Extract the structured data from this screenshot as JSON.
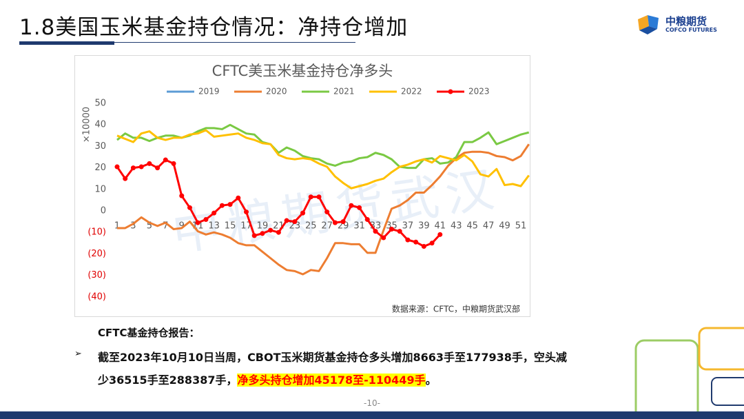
{
  "header": {
    "title": "1.8美国玉米基金持仓情况：净持仓增加"
  },
  "logo": {
    "name": "中粮期货",
    "subtitle": "COFCO FUTURES"
  },
  "watermark": "中粮期货武汉",
  "chart_data": {
    "type": "line",
    "title": "CFTC美玉米基金持仓净多头",
    "y_label": "×10000",
    "source": "数据来源：CFTC，中粮期货武汉部",
    "x": [
      1,
      2,
      3,
      4,
      5,
      6,
      7,
      8,
      9,
      10,
      11,
      12,
      13,
      14,
      15,
      16,
      17,
      18,
      19,
      20,
      21,
      22,
      23,
      24,
      25,
      26,
      27,
      28,
      29,
      30,
      31,
      32,
      33,
      34,
      35,
      36,
      37,
      38,
      39,
      40,
      41,
      42,
      43,
      44,
      45,
      46,
      47,
      48,
      49,
      50,
      51,
      52
    ],
    "xlim": [
      1,
      52
    ],
    "xticks": [
      1,
      3,
      5,
      7,
      9,
      11,
      13,
      15,
      17,
      19,
      21,
      23,
      25,
      27,
      29,
      31,
      33,
      35,
      37,
      39,
      41,
      43,
      45,
      47,
      49,
      51
    ],
    "ylim": [
      -40,
      50
    ],
    "yticks": [
      {
        "value": -40,
        "label": "(40)"
      },
      {
        "value": -30,
        "label": "(30)"
      },
      {
        "value": -20,
        "label": "(20)"
      },
      {
        "value": -10,
        "label": "(10)"
      },
      0,
      10,
      20,
      30,
      40,
      50
    ],
    "grid": false,
    "series": [
      {
        "name": "2019",
        "color": "#5b9bd5",
        "values": [
          null,
          null,
          null,
          null,
          null,
          null,
          null,
          null,
          null,
          null,
          null,
          null,
          null,
          null,
          null,
          null,
          null,
          null,
          null,
          null,
          null,
          null,
          null,
          null,
          null,
          null,
          null,
          null,
          null,
          null,
          null,
          null,
          null,
          null,
          null,
          null,
          null,
          null,
          null,
          null,
          null,
          null,
          null,
          null,
          null,
          null,
          null,
          null,
          null,
          null,
          null,
          null
        ]
      },
      {
        "name": "2020",
        "color": "#ed7d31",
        "values": [
          -8,
          -8,
          -6,
          -3,
          -5.5,
          -7,
          -5.5,
          -8.5,
          -8,
          -5,
          -9.5,
          -11,
          -10,
          -11,
          -12.5,
          -15,
          -16,
          -16,
          -19,
          -22,
          -25,
          -27.5,
          -28,
          -29.5,
          -27.5,
          -28,
          -22,
          -15,
          -15,
          -15.5,
          -15.5,
          -19.5,
          -19.5,
          -9,
          1,
          2.5,
          5,
          8.5,
          8.5,
          12,
          16,
          21,
          24.5,
          27,
          27.5,
          27.5,
          27,
          25.5,
          25,
          23.5,
          25.5,
          31
        ]
      },
      {
        "name": "2021",
        "color": "#7ac943",
        "values": [
          33,
          36,
          34,
          34,
          32.5,
          34,
          35,
          35,
          34,
          35,
          37,
          38.5,
          38.5,
          38,
          40,
          38,
          36,
          35.5,
          32,
          31,
          27,
          29.5,
          28,
          25.5,
          24.5,
          24,
          22,
          21,
          22.5,
          23,
          24.5,
          25,
          27,
          26,
          24,
          20.5,
          20,
          20,
          24,
          24.5,
          22,
          22.5,
          25,
          32,
          32,
          34,
          36.5,
          31,
          32.5,
          34,
          35.5,
          36.5
        ]
      },
      {
        "name": "2022",
        "color": "#ffc000",
        "values": [
          35,
          33.5,
          32,
          36,
          37,
          34,
          33,
          34,
          34,
          35.5,
          36,
          37.5,
          34.5,
          35,
          35.5,
          36,
          34,
          33,
          31.5,
          31,
          26,
          24.5,
          24,
          24.5,
          24,
          22,
          20.5,
          16,
          13,
          10.5,
          11.5,
          12.5,
          14,
          15,
          18,
          20.5,
          21.5,
          23,
          24,
          22.5,
          25.5,
          24.5,
          23.5,
          26,
          23,
          17,
          16,
          19.5,
          12,
          12.5,
          11.5,
          16.5
        ]
      },
      {
        "name": "2023",
        "color": "#ff0000",
        "marker": true,
        "values": [
          20.5,
          15,
          20,
          20.5,
          22,
          20,
          23.7,
          22,
          7,
          1.5,
          -5.5,
          -4,
          -1,
          2.5,
          3,
          6,
          -0.5,
          -11.5,
          -10.5,
          -9,
          -10,
          -4.5,
          -5,
          -1,
          6.5,
          6.5,
          -0.5,
          -5.5,
          -5,
          2.5,
          1.5,
          -4,
          -9.5,
          -12.5,
          -8.5,
          -9.5,
          -13.5,
          -14.5,
          -16.5,
          -15,
          -11,
          null,
          null,
          null,
          null,
          null,
          null,
          null,
          null,
          null,
          null,
          null
        ]
      }
    ]
  },
  "report": {
    "heading": "CFTC基金持仓报告：",
    "line1": "截至2023年10月10日当周，CBOT玉米期货基金持仓多头增加8663手至177938手，空头减",
    "line2": "少36515手至288387手，",
    "highlight": "净多头持仓增加45178至-110449手",
    "end": "。"
  },
  "page_number": "-10-"
}
